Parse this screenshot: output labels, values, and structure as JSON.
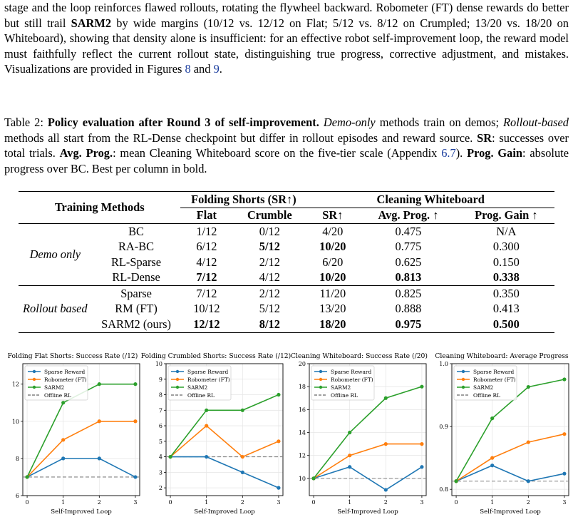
{
  "paragraph": {
    "t1": "stage and the loop reinforces flawed rollouts, rotating the flywheel backward. Robometer (FT) dense rewards do better but still trail ",
    "t1b": "SARM2",
    "t2": " by wide margins (10/12 vs. 12/12 on Flat; 5/12 vs. 8/12 on Crumpled; 13/20 vs. 18/20 on Whiteboard), showing that density alone is insufficient: for an effective robot self-improvement loop, the reward model must faithfully reflect the current rollout state, distinguishing true progress, corrective adjustment, and mistakes. Visualizations are provided in Figures ",
    "fig8": "8",
    "and": " and ",
    "fig9": "9",
    "end": "."
  },
  "caption": {
    "label": "Table 2: ",
    "title": "Policy evaluation after Round 3 of self-improvement.",
    "s1i": "Demo-only",
    "s1": " methods train on demos; ",
    "s2i": "Rollout-based",
    "s2": " methods all start from the RL-Dense checkpoint but differ in rollout episodes and reward source. ",
    "sr_b": "SR",
    "sr": ": successes over total trials. ",
    "ap_b": "Avg. Prog.",
    "ap": ": mean Cleaning Whiteboard score on the five-tier scale (Appendix ",
    "app": "6.7",
    "ap2": "). ",
    "pg_b": "Prog. Gain",
    "pg": ": absolute progress over BC. Best per column in bold."
  },
  "table": {
    "h_methods": "Training Methods",
    "h_folding": "Folding Shorts (SR↑)",
    "h_cleaning": "Cleaning Whiteboard",
    "h_flat": "Flat",
    "h_crumble": "Crumble",
    "h_sr": "SR↑",
    "h_avg": "Avg. Prog. ↑",
    "h_gain": "Prog. Gain ↑",
    "groups": [
      {
        "name": "Demo only",
        "rows": [
          {
            "m": "BC",
            "flat": "1/12",
            "crumble": "0/12",
            "sr": "4/20",
            "avg": "0.475",
            "gain": "N/A"
          },
          {
            "m": "RA-BC",
            "flat": "6/12",
            "crumble": "5/12",
            "sr": "10/20",
            "avg": "0.775",
            "gain": "0.300"
          },
          {
            "m": "RL-Sparse",
            "flat": "4/12",
            "crumble": "2/12",
            "sr": "6/20",
            "avg": "0.625",
            "gain": "0.150"
          },
          {
            "m": "RL-Dense",
            "flat": "7/12",
            "crumble": "4/12",
            "sr": "10/20",
            "avg": "0.813",
            "gain": "0.338"
          }
        ]
      },
      {
        "name": "Rollout based",
        "rows": [
          {
            "m": "Sparse",
            "flat": "7/12",
            "crumble": "2/12",
            "sr": "11/20",
            "avg": "0.825",
            "gain": "0.350"
          },
          {
            "m": "RM (FT)",
            "flat": "10/12",
            "crumble": "5/12",
            "sr": "13/20",
            "avg": "0.888",
            "gain": "0.413"
          },
          {
            "m": "SARM2 (ours)",
            "flat": "12/12",
            "crumble": "8/12",
            "sr": "18/20",
            "avg": "0.975",
            "gain": "0.500"
          }
        ]
      }
    ]
  },
  "chart_data": [
    {
      "type": "line",
      "title": "Folding Flat Shorts: Success Rate (/12)",
      "xlabel": "Self-Improved Loop",
      "x": [
        0,
        1,
        2,
        3
      ],
      "xticks": [
        "0",
        "1",
        "2",
        "3"
      ],
      "ylim": [
        6,
        13.1
      ],
      "yticks": [
        6,
        8,
        10,
        12
      ],
      "grid": true,
      "legend": "top-left",
      "series": [
        {
          "name": "Sparse Reward",
          "values": [
            7,
            8,
            8,
            7
          ],
          "color": "#1f77b4"
        },
        {
          "name": "Robometer (FT)",
          "values": [
            7,
            9,
            10,
            10
          ],
          "color": "#ff7f0e"
        },
        {
          "name": "SARM2",
          "values": [
            7,
            11,
            12,
            12
          ],
          "color": "#2ca02c"
        }
      ],
      "baseline": {
        "name": "Offline RL",
        "value": 7,
        "color": "#808080"
      }
    },
    {
      "type": "line",
      "title": "Folding Crumbled Shorts: Success Rate (/12)",
      "xlabel": "Self-Improved Loop",
      "x": [
        0,
        1,
        2,
        3
      ],
      "xticks": [
        "0",
        "1",
        "2",
        "3"
      ],
      "ylim": [
        1.5,
        10
      ],
      "yticks": [
        2,
        3,
        4,
        5,
        6,
        7,
        8,
        9,
        10
      ],
      "grid": true,
      "legend": "top-left",
      "series": [
        {
          "name": "Sparse Reward",
          "values": [
            4,
            4,
            3,
            2
          ],
          "color": "#1f77b4"
        },
        {
          "name": "Robometer (FT)",
          "values": [
            4,
            6,
            4,
            5
          ],
          "color": "#ff7f0e"
        },
        {
          "name": "SARM2",
          "values": [
            4,
            7,
            7,
            8
          ],
          "color": "#2ca02c"
        }
      ],
      "baseline": {
        "name": "Offline RL",
        "value": 4,
        "color": "#808080"
      }
    },
    {
      "type": "line",
      "title": "Cleaning Whiteboard: Success Rate (/20)",
      "xlabel": "Self-Improved Loop",
      "x": [
        0,
        1,
        2,
        3
      ],
      "xticks": [
        "0",
        "1",
        "2",
        "3"
      ],
      "ylim": [
        8.5,
        20
      ],
      "yticks": [
        10,
        12,
        14,
        16,
        18,
        20
      ],
      "grid": true,
      "legend": "top-left",
      "series": [
        {
          "name": "Sparse Reward",
          "values": [
            10,
            11,
            9,
            11
          ],
          "color": "#1f77b4"
        },
        {
          "name": "Robometer (FT)",
          "values": [
            10,
            12,
            13,
            13
          ],
          "color": "#ff7f0e"
        },
        {
          "name": "SARM2",
          "values": [
            10,
            14,
            17,
            18
          ],
          "color": "#2ca02c"
        }
      ],
      "baseline": {
        "name": "Offline RL",
        "value": 10,
        "color": "#808080"
      }
    },
    {
      "type": "line",
      "title": "Cleaning Whiteboard: Average Progress",
      "xlabel": "Self-Improved Loop",
      "x": [
        0,
        1,
        2,
        3
      ],
      "xticks": [
        "0",
        "1",
        "2",
        "3"
      ],
      "ylim": [
        0.79,
        1.0
      ],
      "yticks": [
        0.8,
        0.9,
        1.0
      ],
      "ytick_labels": [
        "0.8",
        "0.9",
        "1.0"
      ],
      "grid": true,
      "legend": "top-left",
      "series": [
        {
          "name": "Sparse Reward",
          "values": [
            0.813,
            0.838,
            0.813,
            0.825
          ],
          "color": "#1f77b4"
        },
        {
          "name": "Robometer (FT)",
          "values": [
            0.813,
            0.85,
            0.875,
            0.888
          ],
          "color": "#ff7f0e"
        },
        {
          "name": "SARM2",
          "values": [
            0.813,
            0.913,
            0.963,
            0.975
          ],
          "color": "#2ca02c"
        }
      ],
      "baseline": {
        "name": "Offline RL",
        "value": 0.813,
        "color": "#808080"
      }
    }
  ]
}
